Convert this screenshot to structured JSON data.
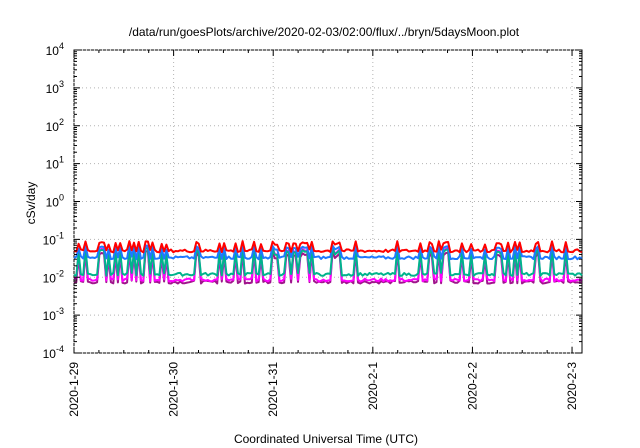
{
  "chart_data": {
    "type": "line",
    "title": "/data/run/goesPlots/archive/2020-02-03/02:00/flux/../bryn/5daysMoon.plot",
    "xlabel": "Coordinated Universal Time (UTC)",
    "ylabel": "cSv/day",
    "yscale": "log",
    "ylim": [
      0.0001,
      10000
    ],
    "y_ticks": [
      {
        "value": 0.0001,
        "base": "10",
        "exp": "-4"
      },
      {
        "value": 0.001,
        "base": "10",
        "exp": "-3"
      },
      {
        "value": 0.01,
        "base": "10",
        "exp": "-2"
      },
      {
        "value": 0.1,
        "base": "10",
        "exp": "-1"
      },
      {
        "value": 1,
        "base": "10",
        "exp": "0"
      },
      {
        "value": 10,
        "base": "10",
        "exp": "1"
      },
      {
        "value": 100,
        "base": "10",
        "exp": "2"
      },
      {
        "value": 1000,
        "base": "10",
        "exp": "3"
      },
      {
        "value": 10000,
        "base": "10",
        "exp": "4"
      }
    ],
    "x_ticks": [
      "2020-1-29",
      "2020-1-30",
      "2020-1-31",
      "2020-2-1",
      "2020-2-2",
      "2020-2-3"
    ],
    "xlim_days": [
      0,
      5.1
    ],
    "grid": true,
    "series": [
      {
        "color": "#ff0000",
        "baseline": 0.05,
        "spike": 0.09
      },
      {
        "color": "#1e78ff",
        "baseline": 0.033,
        "spike": 0.07
      },
      {
        "color": "#00b48c",
        "baseline": 0.012,
        "spike": 0.06
      },
      {
        "color": "#ff00ff",
        "baseline": 0.0085,
        "spike": 0.065
      },
      {
        "color": "#a0148c",
        "baseline": 0.0075,
        "spike": 0.05
      }
    ]
  }
}
